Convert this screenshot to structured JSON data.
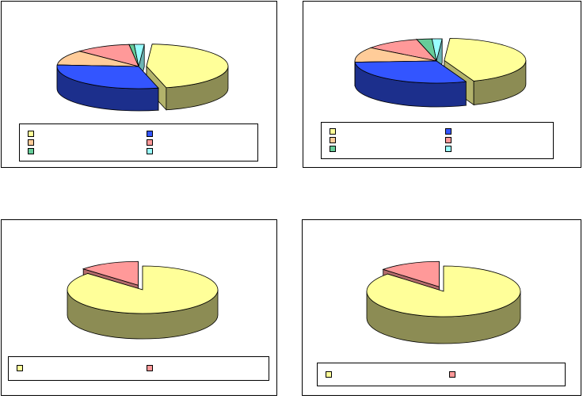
{
  "colors": {
    "yellow": "#ffff99",
    "blue": "#3355ff",
    "orange": "#ffcc99",
    "pink": "#ff9999",
    "green": "#66cc99",
    "cyan": "#99ffff",
    "red": "#ff9999"
  },
  "chart_data": [
    {
      "type": "pie",
      "title": "",
      "series": [
        {
          "name": "",
          "color": "yellow",
          "value": 45,
          "exploded": true
        },
        {
          "name": "",
          "color": "blue",
          "value": 30,
          "exploded": false
        },
        {
          "name": "",
          "color": "orange",
          "value": 11,
          "exploded": false
        },
        {
          "name": "",
          "color": "pink",
          "value": 11,
          "exploded": false
        },
        {
          "name": "",
          "color": "green",
          "value": 1,
          "exploded": false
        },
        {
          "name": "",
          "color": "cyan",
          "value": 2,
          "exploded": false
        }
      ]
    },
    {
      "type": "pie",
      "title": "",
      "series": [
        {
          "name": "",
          "color": "yellow",
          "value": 43,
          "exploded": true
        },
        {
          "name": "",
          "color": "blue",
          "value": 30,
          "exploded": false
        },
        {
          "name": "",
          "color": "orange",
          "value": 11,
          "exploded": false
        },
        {
          "name": "",
          "color": "pink",
          "value": 11,
          "exploded": false
        },
        {
          "name": "",
          "color": "green",
          "value": 3,
          "exploded": false
        },
        {
          "name": "",
          "color": "cyan",
          "value": 2,
          "exploded": false
        }
      ]
    },
    {
      "type": "pie",
      "title": "",
      "series": [
        {
          "name": "",
          "color": "yellow",
          "value": 87,
          "exploded": false
        },
        {
          "name": "",
          "color": "red",
          "value": 13,
          "exploded": true
        }
      ]
    },
    {
      "type": "pie",
      "title": "",
      "series": [
        {
          "name": "",
          "color": "yellow",
          "value": 87,
          "exploded": false
        },
        {
          "name": "",
          "color": "red",
          "value": 13,
          "exploded": true
        }
      ]
    }
  ]
}
